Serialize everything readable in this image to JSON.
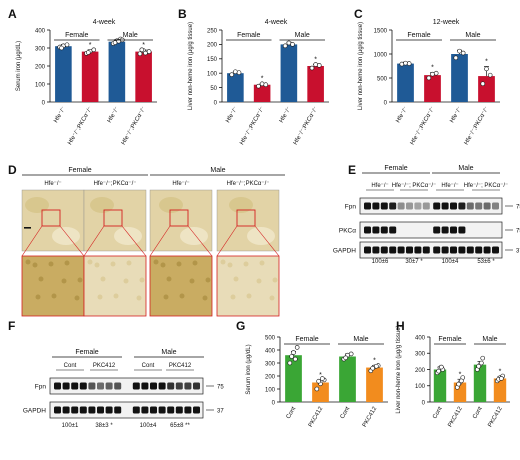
{
  "figure": {
    "panels": {
      "A": {
        "letter": "A",
        "title": "4-week",
        "ylabel": "Serum iron (μg/dL)",
        "groups": [
          "Female",
          "Male"
        ],
        "xlabels": [
          "Hfe⁻/⁻",
          "Hfe⁻/⁻;PKCα⁻/⁻",
          "Hfe⁻/⁻",
          "Hfe⁻/⁻;PKCα⁻/⁻"
        ]
      },
      "B": {
        "letter": "B",
        "title": "4-week",
        "ylabel": "Liver non-heme iron (μg/g tissue)",
        "groups": [
          "Female",
          "Male"
        ],
        "xlabels": [
          "Hfe⁻/⁻",
          "Hfe⁻/⁻;PKCα⁻/⁻",
          "Hfe⁻/⁻",
          "Hfe⁻/⁻;PKCα⁻/⁻"
        ]
      },
      "C": {
        "letter": "C",
        "title": "12-week",
        "ylabel": "Liver non-heme iron (μg/g tissue)",
        "groups": [
          "Female",
          "Male"
        ],
        "xlabels": [
          "Hfe⁻/⁻",
          "Hfe⁻/⁻;PKCα⁻/⁻",
          "Hfe⁻/⁻",
          "Hfe⁻/⁻;PKCα⁻/⁻"
        ]
      },
      "D": {
        "letter": "D",
        "groups": [
          "Female",
          "Male"
        ],
        "cols": [
          "Hfe⁻/⁻",
          "Hfe⁻/⁻;PKCα⁻/⁻",
          "Hfe⁻/⁻",
          "Hfe⁻/⁻;PKCα⁻/⁻"
        ]
      },
      "E": {
        "letter": "E",
        "groups": [
          "Female",
          "Male"
        ],
        "cols": [
          "Hfe⁻/⁻",
          "Hfe⁻/⁻; PKCα⁻/⁻",
          "Hfe⁻/⁻",
          "Hfe⁻/⁻; PKCα⁻/⁻"
        ],
        "rows": [
          "Fpn",
          "PKCα",
          "GAPDH"
        ],
        "markers": [
          "75",
          "75",
          "37"
        ],
        "quant": [
          "100±6",
          "30±7 *",
          "100±4",
          "53±6 *"
        ]
      },
      "F": {
        "letter": "F",
        "groups": [
          "Female",
          "Male"
        ],
        "cols": [
          "Cont",
          "PKC412",
          "Cont",
          "PKC412"
        ],
        "rows": [
          "Fpn",
          "GAPDH"
        ],
        "markers": [
          "75",
          "37"
        ],
        "quant": [
          "100±1",
          "38±3 *",
          "100±4",
          "65±8 **"
        ]
      },
      "G": {
        "letter": "G",
        "ylabel": "Serum iron (μg/dL)",
        "groups": [
          "Female",
          "Male"
        ],
        "xlabels": [
          "Cont",
          "PKC412",
          "Cont",
          "PKC412"
        ]
      },
      "H": {
        "letter": "H",
        "ylabel": "Liver non-heme iron (μg/g tissue)",
        "groups": [
          "Female",
          "Male"
        ],
        "xlabels": [
          "Cont",
          "PKC412",
          "Cont",
          "PKC412"
        ]
      }
    },
    "colors": {
      "blue": "#1f5a96",
      "red": "#c8102e",
      "green": "#3aa635",
      "orange": "#f28c1e",
      "histo_bg": "#e2d3a6",
      "histo_zoom": "#c9ac62",
      "box": "#d42020"
    }
  },
  "chart_data": [
    {
      "panel": "A",
      "type": "bar",
      "title": "4-week",
      "ylabel": "Serum iron (μg/dL)",
      "categories": [
        "Hfe⁻/⁻",
        "Hfe⁻/⁻;PKCα⁻/⁻",
        "Hfe⁻/⁻",
        "Hfe⁻/⁻;PKCα⁻/⁻"
      ],
      "values": [
        310,
        280,
        335,
        280
      ],
      "errors": [
        10,
        10,
        12,
        8
      ],
      "stars": [
        "",
        "*",
        "",
        "*"
      ],
      "colors": [
        "#1f5a96",
        "#c8102e",
        "#1f5a96",
        "#c8102e"
      ],
      "ylim": [
        0,
        400
      ],
      "yticks": [
        "0",
        "100",
        "200",
        "300",
        "400"
      ],
      "points": [
        [
          305,
          312,
          318,
          300
        ],
        [
          270,
          282,
          290,
          275
        ],
        [
          325,
          340,
          350,
          330,
          338,
          345
        ],
        [
          268,
          285,
          278,
          290,
          272,
          280
        ]
      ]
    },
    {
      "panel": "B",
      "type": "bar",
      "title": "4-week",
      "ylabel": "Liver non-heme iron (μg/g tissue)",
      "categories": [
        "Hfe⁻/⁻",
        "Hfe⁻/⁻;PKCα⁻/⁻",
        "Hfe⁻/⁻",
        "Hfe⁻/⁻;PKCα⁻/⁻"
      ],
      "values": [
        100,
        60,
        200,
        125
      ],
      "errors": [
        5,
        5,
        8,
        6
      ],
      "stars": [
        "",
        "*",
        "",
        "*"
      ],
      "colors": [
        "#1f5a96",
        "#c8102e",
        "#1f5a96",
        "#c8102e"
      ],
      "ylim": [
        0,
        250
      ],
      "yticks": [
        "0",
        "50",
        "100",
        "150",
        "200",
        "250"
      ],
      "points": [
        [
          95,
          105,
          102
        ],
        [
          55,
          63,
          60
        ],
        [
          195,
          205,
          200
        ],
        [
          118,
          130,
          127
        ]
      ]
    },
    {
      "panel": "C",
      "type": "bar",
      "title": "12-week",
      "ylabel": "Liver non-heme iron (μg/g tissue)",
      "categories": [
        "Hfe⁻/⁻",
        "Hfe⁻/⁻;PKCα⁻/⁻",
        "Hfe⁻/⁻",
        "Hfe⁻/⁻;PKCα⁻/⁻"
      ],
      "values": [
        800,
        560,
        1000,
        540
      ],
      "errors": [
        30,
        50,
        80,
        200
      ],
      "stars": [
        "",
        "*",
        "",
        "*"
      ],
      "colors": [
        "#1f5a96",
        "#c8102e",
        "#1f5a96",
        "#c8102e"
      ],
      "ylim": [
        0,
        1500
      ],
      "yticks": [
        "0",
        "500",
        "1000",
        "1500"
      ],
      "points": [
        [
          790,
          810,
          800
        ],
        [
          500,
          580,
          600
        ],
        [
          920,
          1060,
          1020
        ],
        [
          380,
          690,
          560
        ]
      ]
    },
    {
      "panel": "G",
      "type": "bar",
      "ylabel": "Serum iron (μg/dL)",
      "categories": [
        "Cont",
        "PKC412",
        "Cont",
        "PKC412"
      ],
      "values": [
        360,
        150,
        350,
        265
      ],
      "errors": [
        30,
        20,
        20,
        15
      ],
      "stars": [
        "",
        "*",
        "",
        "*"
      ],
      "colors": [
        "#3aa635",
        "#f28c1e",
        "#3aa635",
        "#f28c1e"
      ],
      "ylim": [
        0,
        500
      ],
      "yticks": [
        "0",
        "100",
        "200",
        "300",
        "400",
        "500"
      ],
      "points": [
        [
          300,
          380,
          420,
          350,
          330
        ],
        [
          100,
          140,
          170,
          160,
          180
        ],
        [
          330,
          360,
          370,
          340
        ],
        [
          240,
          270,
          280,
          260,
          275
        ]
      ]
    },
    {
      "panel": "H",
      "type": "bar",
      "ylabel": "Liver non-heme iron (μg/g tissue)",
      "categories": [
        "Cont",
        "PKC412",
        "Cont",
        "PKC412"
      ],
      "values": [
        200,
        120,
        230,
        145
      ],
      "errors": [
        15,
        20,
        20,
        12
      ],
      "stars": [
        "",
        "*",
        "",
        "*"
      ],
      "colors": [
        "#3aa635",
        "#f28c1e",
        "#3aa635",
        "#f28c1e"
      ],
      "ylim": [
        0,
        400
      ],
      "yticks": [
        "0",
        "100",
        "200",
        "300",
        "400"
      ],
      "points": [
        [
          180,
          210,
          200,
          190,
          215
        ],
        [
          90,
          120,
          150,
          110,
          130
        ],
        [
          200,
          230,
          270,
          220,
          240
        ],
        [
          130,
          150,
          160,
          140,
          145
        ]
      ]
    }
  ]
}
